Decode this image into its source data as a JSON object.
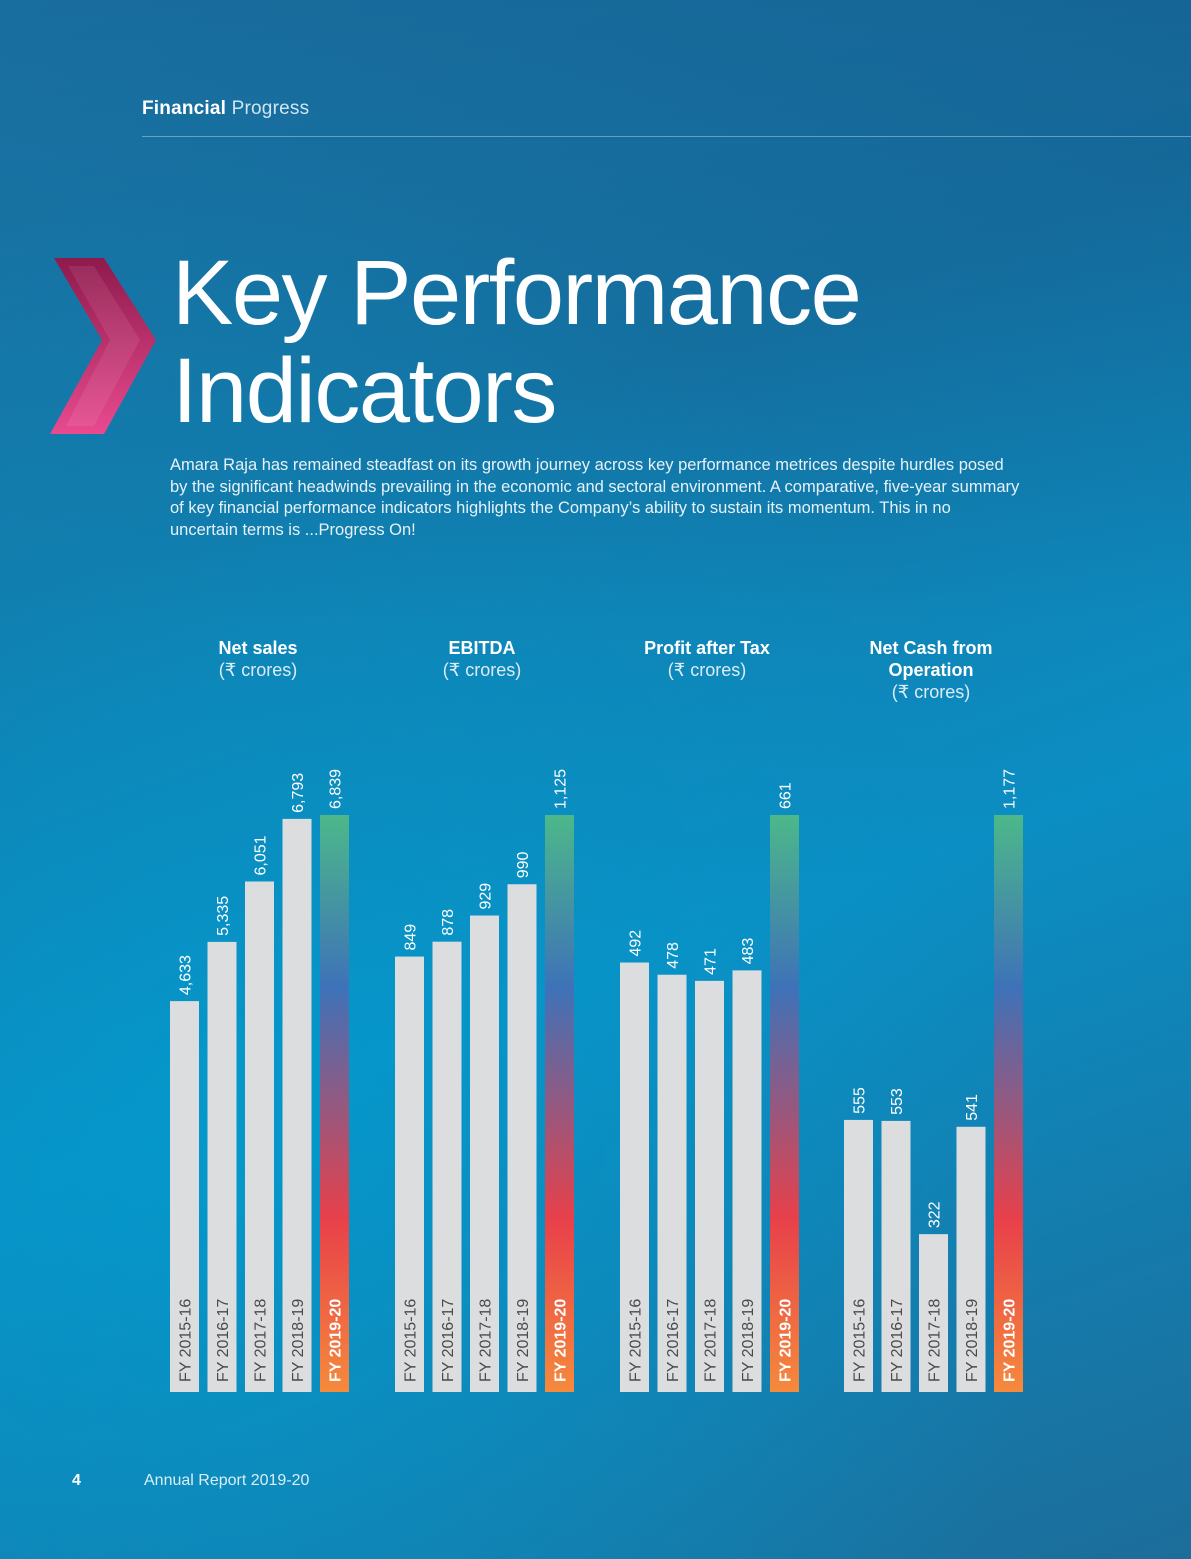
{
  "header": {
    "section_strong": "Financial",
    "section_light": "Progress"
  },
  "title": {
    "line1": "Key Performance",
    "line2": "Indicators"
  },
  "intro": "Amara Raja has remained steadfast on its growth journey across key performance metrices despite hurdles posed by the significant headwinds prevailing in the economic and sectoral environment. A comparative, five-year summary of key financial performance indicators highlights the Company’s ability to sustain its momentum. This in no uncertain terms is ...Progress On!",
  "colors": {
    "bar_default": "#dcdddf",
    "highlight_top": "#4cb88a",
    "highlight_mid": "#3e72b8",
    "highlight_lower": "#e8404a",
    "highlight_bottom": "#f58a3c",
    "chevron_top": "#8e1a4c",
    "chevron_bottom": "#e84a8f"
  },
  "chart_data": [
    {
      "type": "bar",
      "title": "Net sales",
      "unit": "(₹ crores)",
      "categories": [
        "FY 2015-16",
        "FY 2016-17",
        "FY 2017-18",
        "FY 2018-19",
        "FY 2019-20"
      ],
      "values": [
        4633,
        5335,
        6051,
        6793,
        6839
      ],
      "labels": [
        "4,633",
        "5,335",
        "6,051",
        "6,793",
        "6,839"
      ],
      "highlight_index": 4
    },
    {
      "type": "bar",
      "title": "EBITDA",
      "unit": "(₹ crores)",
      "categories": [
        "FY 2015-16",
        "FY 2016-17",
        "FY 2017-18",
        "FY 2018-19",
        "FY 2019-20"
      ],
      "values": [
        849,
        878,
        929,
        990,
        1125
      ],
      "labels": [
        "849",
        "878",
        "929",
        "990",
        "1,125"
      ],
      "highlight_index": 4
    },
    {
      "type": "bar",
      "title": "Profit after Tax",
      "unit": "(₹ crores)",
      "categories": [
        "FY 2015-16",
        "FY 2016-17",
        "FY 2017-18",
        "FY 2018-19",
        "FY 2019-20"
      ],
      "values": [
        492,
        478,
        471,
        483,
        661
      ],
      "labels": [
        "492",
        "478",
        "471",
        "483",
        "661"
      ],
      "highlight_index": 4
    },
    {
      "type": "bar",
      "title": "Net Cash from Operation",
      "unit": "(₹ crores)",
      "categories": [
        "FY 2015-16",
        "FY 2016-17",
        "FY 2017-18",
        "FY 2018-19",
        "FY 2019-20"
      ],
      "values": [
        555,
        553,
        322,
        541,
        1177
      ],
      "labels": [
        "555",
        "553",
        "322",
        "541",
        "1,177"
      ],
      "highlight_index": 4
    }
  ],
  "footer": {
    "page_number": "4",
    "report_title": "Annual Report 2019-20"
  }
}
